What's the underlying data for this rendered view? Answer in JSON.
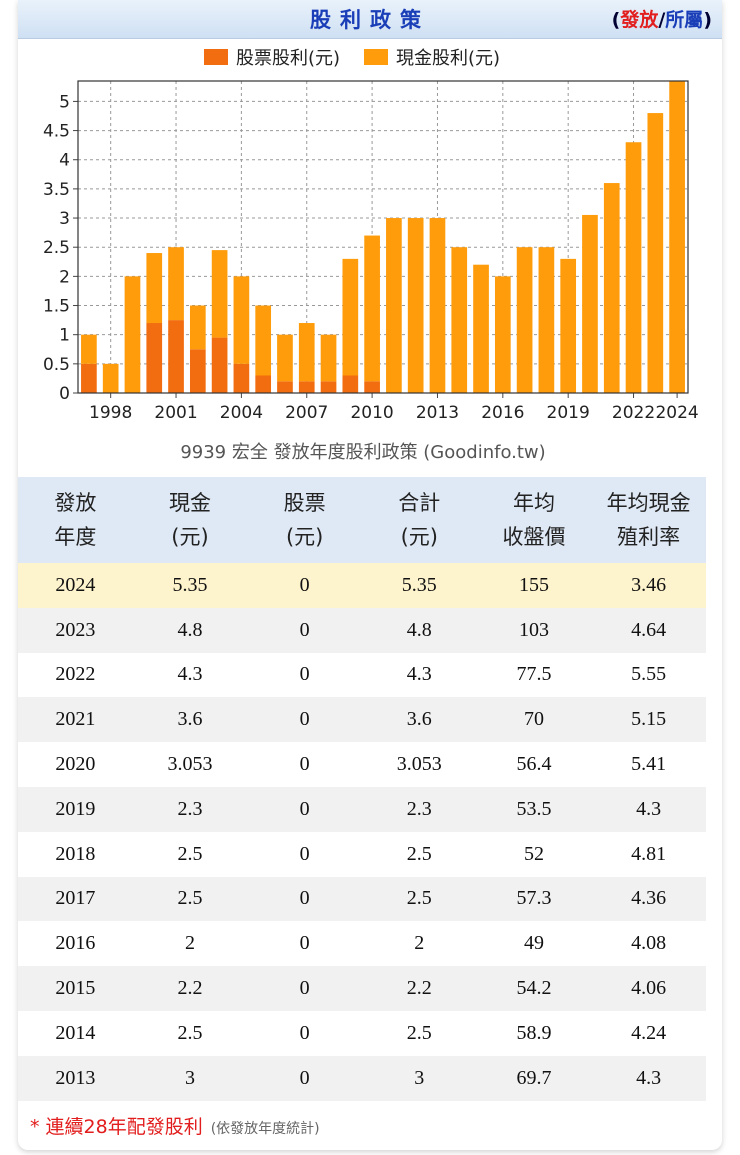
{
  "header": {
    "title": "股利政策",
    "switch_open": "(",
    "switch_issue": "發放",
    "switch_sep": "/",
    "switch_belong": "所屬",
    "switch_close": ")"
  },
  "chart_data": {
    "type": "bar",
    "stacked": true,
    "title": "9939 宏全 發放年度股利政策 (Goodinfo.tw)",
    "legend_position": "top",
    "x": [
      1997,
      1998,
      1999,
      2000,
      2001,
      2002,
      2003,
      2004,
      2005,
      2006,
      2007,
      2008,
      2009,
      2010,
      2011,
      2012,
      2013,
      2014,
      2015,
      2016,
      2017,
      2018,
      2019,
      2020,
      2021,
      2022,
      2023,
      2024
    ],
    "x_tick_labels": [
      "1998",
      "2001",
      "2004",
      "2007",
      "2010",
      "2013",
      "2016",
      "2019",
      "2022",
      "2024"
    ],
    "series": [
      {
        "name": "股票股利(元)",
        "color": "#f26d0f",
        "values": [
          0.5,
          0,
          0,
          1.2,
          1.25,
          0.75,
          0.95,
          0.5,
          0.3,
          0.2,
          0.2,
          0.2,
          0.3,
          0.2,
          0,
          0,
          0,
          0,
          0,
          0,
          0,
          0,
          0,
          0,
          0,
          0,
          0,
          0
        ]
      },
      {
        "name": "現金股利(元)",
        "color": "#ff9c0b",
        "values": [
          0.5,
          0.5,
          2,
          1.2,
          1.25,
          0.75,
          1.5,
          1.5,
          1.2,
          0.8,
          1.0,
          0.8,
          2.0,
          2.5,
          3,
          3,
          3,
          2.5,
          2.2,
          2,
          2.5,
          2.5,
          2.3,
          3.053,
          3.6,
          4.3,
          4.8,
          5.35
        ]
      }
    ],
    "ylim": [
      0,
      5.35
    ],
    "y_ticks": [
      "0",
      "0.5",
      "1",
      "1.5",
      "2",
      "2.5",
      "3",
      "3.5",
      "4",
      "4.5",
      "5"
    ],
    "y_tick_values": [
      0,
      0.5,
      1,
      1.5,
      2,
      2.5,
      3,
      3.5,
      4,
      4.5,
      5
    ],
    "grid": true
  },
  "table": {
    "headers": [
      {
        "l1": "發放",
        "l2": "年度"
      },
      {
        "l1": "現金",
        "l2": "(元)"
      },
      {
        "l1": "股票",
        "l2": "(元)"
      },
      {
        "l1": "合計",
        "l2": "(元)"
      },
      {
        "l1": "年均",
        "l2": "收盤價"
      },
      {
        "l1": "年均現金",
        "l2": "殖利率"
      }
    ],
    "rows": [
      [
        "2024",
        "5.35",
        "0",
        "5.35",
        "155",
        "3.46"
      ],
      [
        "2023",
        "4.8",
        "0",
        "4.8",
        "103",
        "4.64"
      ],
      [
        "2022",
        "4.3",
        "0",
        "4.3",
        "77.5",
        "5.55"
      ],
      [
        "2021",
        "3.6",
        "0",
        "3.6",
        "70",
        "5.15"
      ],
      [
        "2020",
        "3.053",
        "0",
        "3.053",
        "56.4",
        "5.41"
      ],
      [
        "2019",
        "2.3",
        "0",
        "2.3",
        "53.5",
        "4.3"
      ],
      [
        "2018",
        "2.5",
        "0",
        "2.5",
        "52",
        "4.81"
      ],
      [
        "2017",
        "2.5",
        "0",
        "2.5",
        "57.3",
        "4.36"
      ],
      [
        "2016",
        "2",
        "0",
        "2",
        "49",
        "4.08"
      ],
      [
        "2015",
        "2.2",
        "0",
        "2.2",
        "54.2",
        "4.06"
      ],
      [
        "2014",
        "2.5",
        "0",
        "2.5",
        "58.9",
        "4.24"
      ],
      [
        "2013",
        "3",
        "0",
        "3",
        "69.7",
        "4.3"
      ]
    ]
  },
  "footnote": {
    "text": "* 連續28年配發股利",
    "sub": "(依發放年度統計)"
  }
}
